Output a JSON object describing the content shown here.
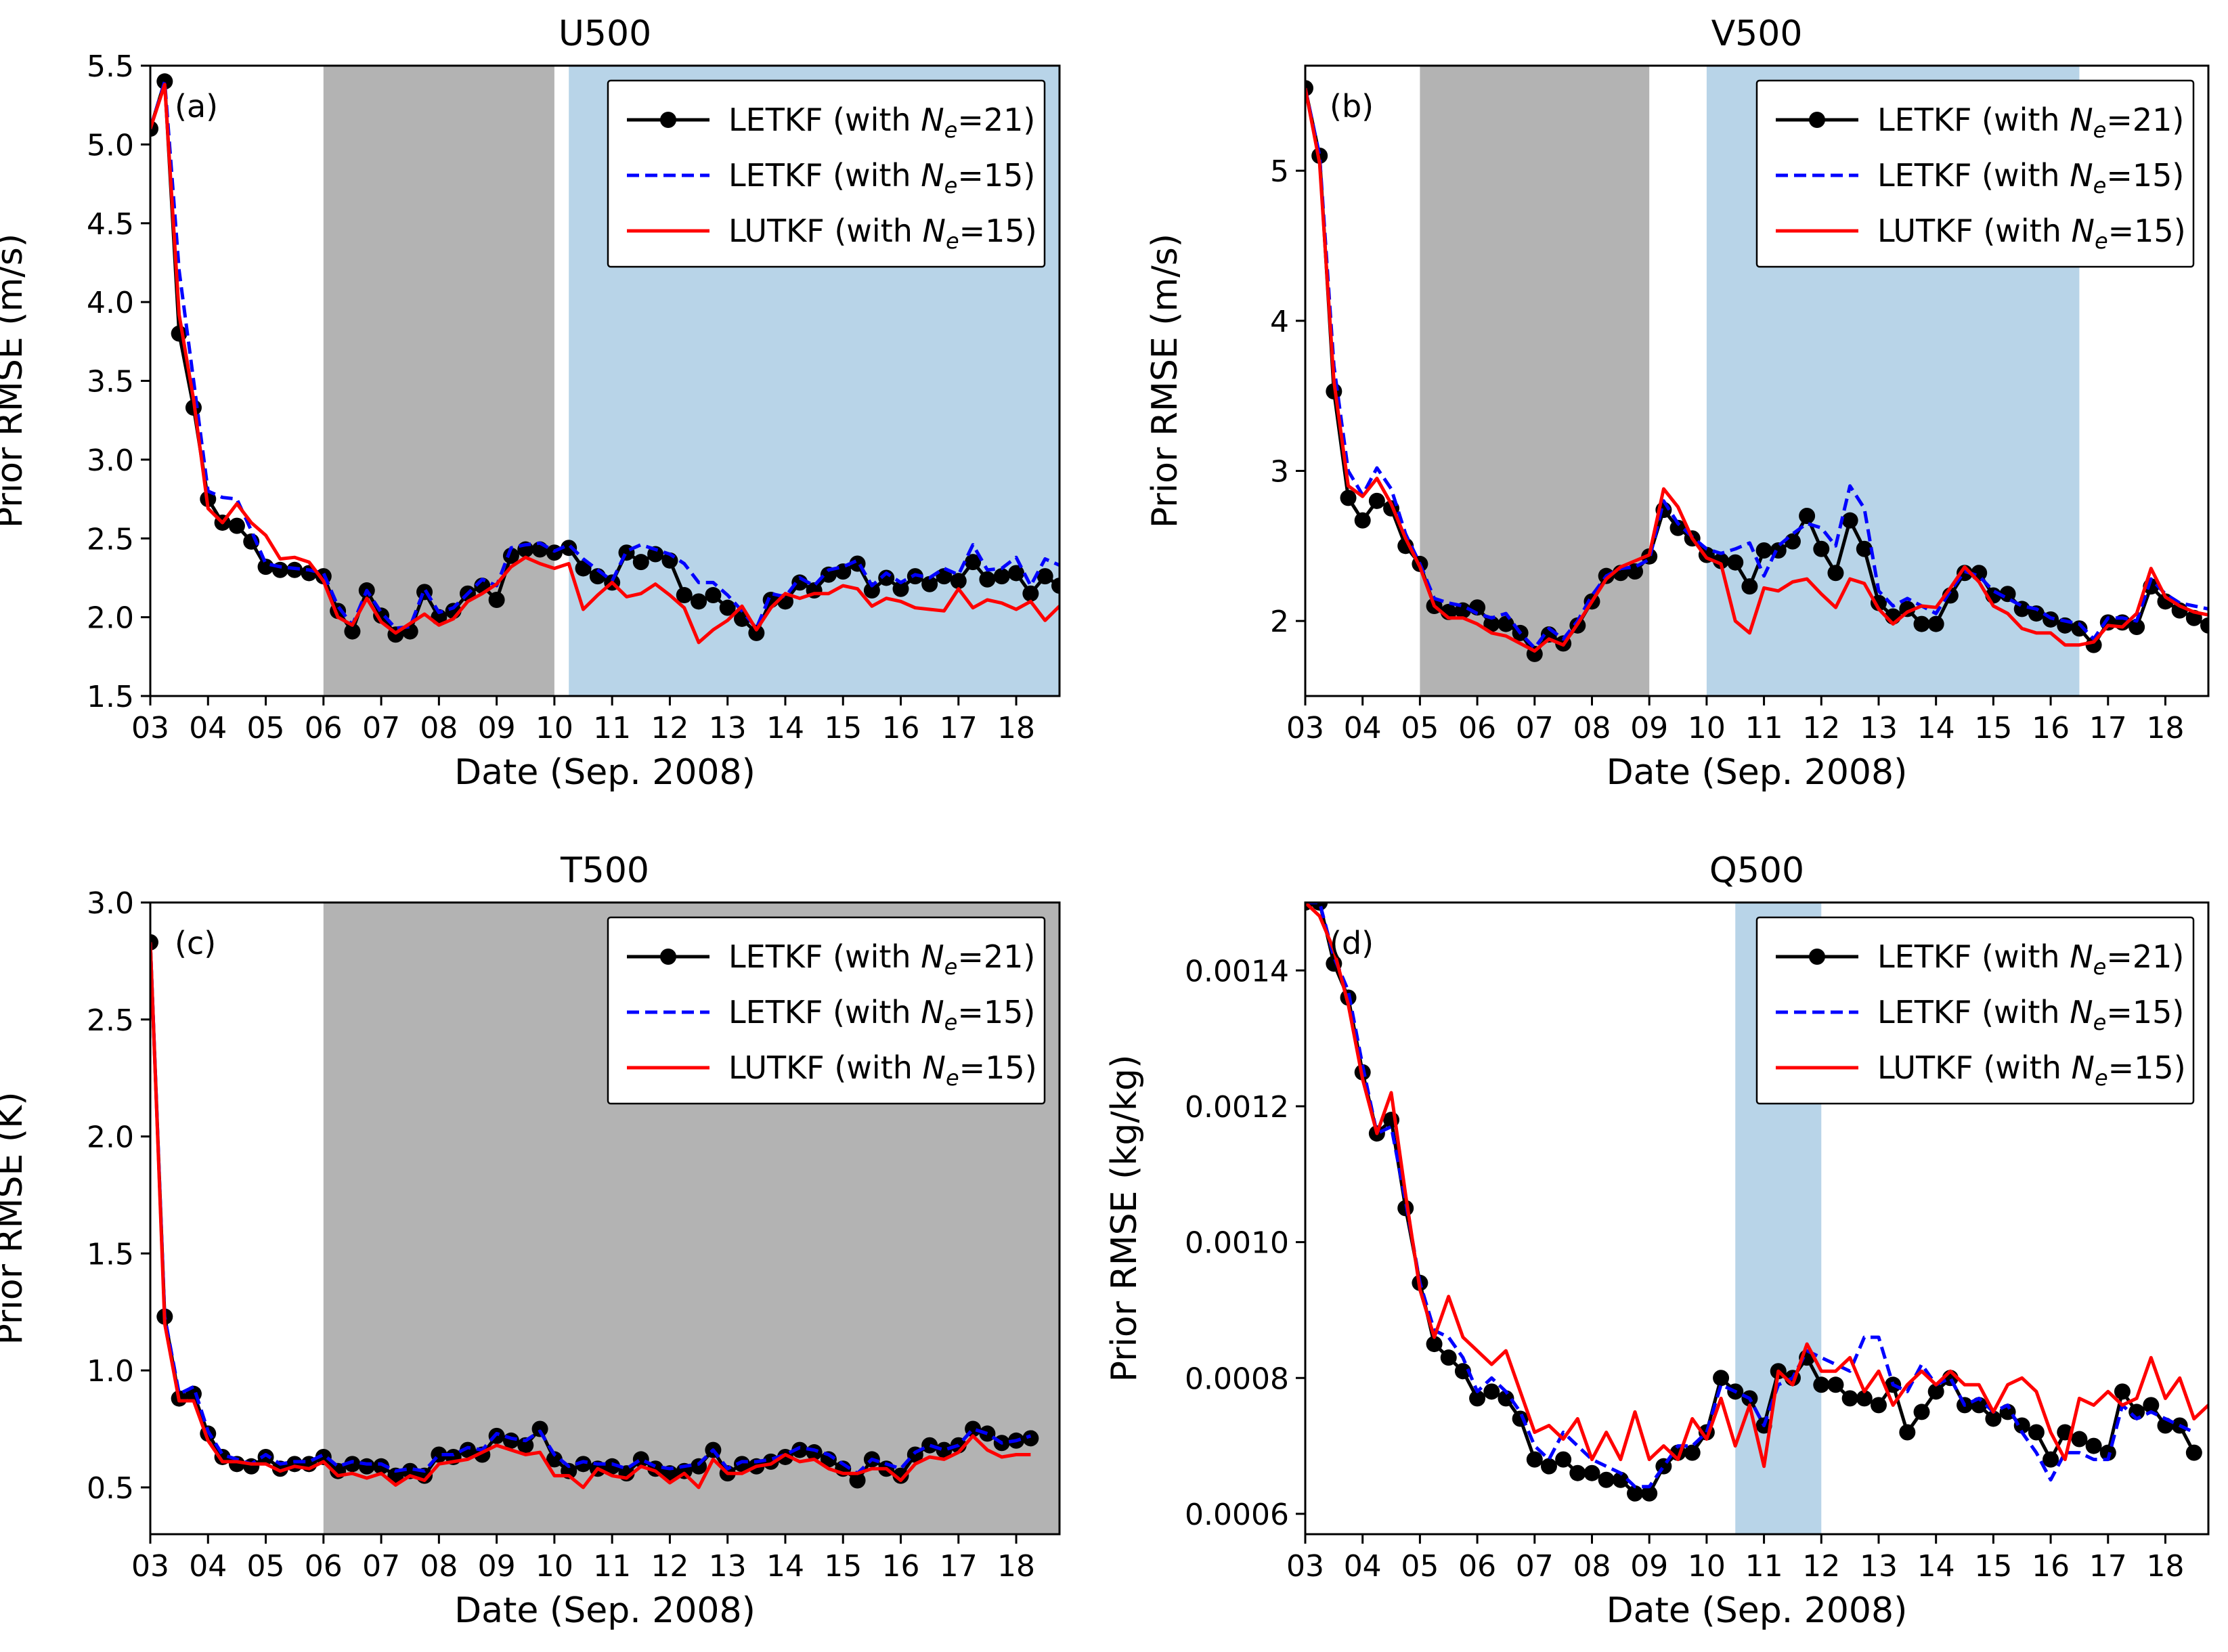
{
  "figure": {
    "background": "#ffffff",
    "colors": {
      "letkf21": "#000000",
      "letkf15": "#0000ff",
      "lutkf15": "#ff0000",
      "shade_gray": "#b3b3b3",
      "shade_blue": "#b8d4e8"
    }
  },
  "legend": {
    "placement": "top-right",
    "entries": [
      {
        "key": "letkf21",
        "prefix": "LETKF (with ",
        "suffix": "=21)",
        "style": "line-marker"
      },
      {
        "key": "letkf15",
        "prefix": "LETKF (with ",
        "suffix": "=15)",
        "style": "dashed"
      },
      {
        "key": "lutkf15",
        "prefix": "LUTKF (with ",
        "suffix": "=15)",
        "style": "solid"
      }
    ],
    "symbol_main": "N",
    "symbol_sub": "e"
  },
  "chart_data": [
    {
      "type": "line",
      "panel": "(a)",
      "title": "U500",
      "xlabel": "Date (Sep. 2008)",
      "ylabel": "Prior RMSE (m/s)",
      "xlim": [
        3,
        18.75
      ],
      "ylim": [
        1.5,
        5.5
      ],
      "xticks": [
        "03",
        "04",
        "05",
        "06",
        "07",
        "08",
        "09",
        "10",
        "11",
        "12",
        "13",
        "14",
        "15",
        "16",
        "17",
        "18"
      ],
      "yticks": [
        "1.5",
        "2.0",
        "2.5",
        "3.0",
        "3.5",
        "4.0",
        "4.5",
        "5.0",
        "5.5"
      ],
      "shaded": [
        {
          "from": 6.0,
          "to": 10.0,
          "color": "gray"
        },
        {
          "from": 10.25,
          "to": 18.75,
          "color": "blue"
        }
      ],
      "series": [
        {
          "key": "letkf21",
          "values": [
            5.1,
            5.4,
            3.8,
            3.33,
            2.75,
            2.6,
            2.58,
            2.48,
            2.32,
            2.3,
            2.3,
            2.28,
            2.26,
            2.04,
            1.91,
            2.17,
            2.01,
            1.89,
            1.91,
            2.16,
            2.0,
            2.04,
            2.15,
            2.2,
            2.11,
            2.39,
            2.43,
            2.43,
            2.41,
            2.44,
            2.31,
            2.26,
            2.22,
            2.41,
            2.35,
            2.4,
            2.36,
            2.14,
            2.1,
            2.14,
            2.06,
            1.99,
            1.9,
            2.11,
            2.1,
            2.22,
            2.17,
            2.27,
            2.29,
            2.34,
            2.17,
            2.25,
            2.18,
            2.26,
            2.21,
            2.26,
            2.23,
            2.35,
            2.24,
            2.26,
            2.28,
            2.15,
            2.26,
            2.2
          ]
        },
        {
          "key": "letkf15",
          "values": [
            5.1,
            5.4,
            4.2,
            3.5,
            2.8,
            2.76,
            2.75,
            2.55,
            2.34,
            2.32,
            2.31,
            2.3,
            2.28,
            2.07,
            1.95,
            2.17,
            2.03,
            1.93,
            1.94,
            2.18,
            2.03,
            2.06,
            2.15,
            2.24,
            2.2,
            2.44,
            2.46,
            2.47,
            2.42,
            2.46,
            2.37,
            2.3,
            2.23,
            2.42,
            2.46,
            2.43,
            2.4,
            2.34,
            2.22,
            2.22,
            2.14,
            2.04,
            1.93,
            2.15,
            2.13,
            2.25,
            2.2,
            2.3,
            2.32,
            2.36,
            2.2,
            2.28,
            2.22,
            2.27,
            2.25,
            2.31,
            2.27,
            2.46,
            2.3,
            2.31,
            2.38,
            2.2,
            2.37,
            2.33
          ]
        },
        {
          "key": "lutkf15",
          "values": [
            5.1,
            5.38,
            3.92,
            3.38,
            2.69,
            2.6,
            2.72,
            2.6,
            2.52,
            2.37,
            2.38,
            2.35,
            2.23,
            2.0,
            1.95,
            2.12,
            1.97,
            1.9,
            1.96,
            2.02,
            1.95,
            1.99,
            2.1,
            2.15,
            2.21,
            2.32,
            2.38,
            2.34,
            2.31,
            2.34,
            2.05,
            2.14,
            2.22,
            2.13,
            2.15,
            2.21,
            2.14,
            2.06,
            1.84,
            1.92,
            1.98,
            2.07,
            1.92,
            2.06,
            2.15,
            2.12,
            2.15,
            2.15,
            2.2,
            2.18,
            2.07,
            2.12,
            2.1,
            2.06,
            2.05,
            2.04,
            2.18,
            2.06,
            2.11,
            2.09,
            2.05,
            2.1,
            1.98,
            2.07,
            2.07
          ]
        }
      ]
    },
    {
      "type": "line",
      "panel": "(b)",
      "title": "V500",
      "xlabel": "Date (Sep. 2008)",
      "ylabel": "Prior RMSE (m/s)",
      "xlim": [
        3,
        18.75
      ],
      "ylim": [
        1.5,
        5.7
      ],
      "xticks": [
        "03",
        "04",
        "05",
        "06",
        "07",
        "08",
        "09",
        "10",
        "11",
        "12",
        "13",
        "14",
        "15",
        "16",
        "17",
        "18"
      ],
      "yticks": [
        "2",
        "3",
        "4",
        "5"
      ],
      "shaded": [
        {
          "from": 5.0,
          "to": 9.0,
          "color": "gray"
        },
        {
          "from": 10.0,
          "to": 16.5,
          "color": "blue"
        }
      ],
      "series": [
        {
          "key": "letkf21",
          "values": [
            5.55,
            5.1,
            3.53,
            2.82,
            2.67,
            2.8,
            2.75,
            2.5,
            2.38,
            2.1,
            2.06,
            2.07,
            2.09,
            1.98,
            1.98,
            1.92,
            1.78,
            1.91,
            1.85,
            1.97,
            2.13,
            2.3,
            2.32,
            2.33,
            2.43,
            2.74,
            2.62,
            2.55,
            2.44,
            2.4,
            2.39,
            2.23,
            2.47,
            2.47,
            2.53,
            2.7,
            2.48,
            2.32,
            2.67,
            2.48,
            2.12,
            2.03,
            2.08,
            1.98,
            1.98,
            2.17,
            2.32,
            2.32,
            2.17,
            2.18,
            2.08,
            2.05,
            2.01,
            1.97,
            1.95,
            1.84,
            1.99,
            1.99,
            1.96,
            2.23,
            2.13,
            2.07,
            2.02,
            1.97,
            1.96,
            1.77
          ]
        },
        {
          "key": "letkf15",
          "values": [
            5.55,
            5.1,
            3.7,
            3.0,
            2.84,
            3.02,
            2.88,
            2.58,
            2.38,
            2.15,
            2.12,
            2.1,
            2.05,
            2.02,
            2.05,
            1.92,
            1.82,
            1.95,
            1.88,
            2.0,
            2.17,
            2.3,
            2.35,
            2.36,
            2.41,
            2.8,
            2.65,
            2.56,
            2.48,
            2.45,
            2.48,
            2.52,
            2.3,
            2.5,
            2.58,
            2.65,
            2.62,
            2.5,
            2.9,
            2.75,
            2.2,
            2.1,
            2.15,
            2.1,
            2.05,
            2.2,
            2.33,
            2.3,
            2.2,
            2.15,
            2.1,
            2.08,
            2.02,
            2.0,
            1.98,
            1.88,
            2.02,
            2.02,
            2.0,
            2.28,
            2.18,
            2.12,
            2.1,
            2.08,
            2.05,
            1.85
          ]
        },
        {
          "key": "lutkf15",
          "values": [
            5.55,
            5.05,
            3.6,
            2.9,
            2.83,
            2.95,
            2.78,
            2.55,
            2.36,
            2.1,
            2.02,
            2.02,
            1.98,
            1.92,
            1.9,
            1.85,
            1.8,
            1.88,
            1.84,
            1.98,
            2.13,
            2.28,
            2.36,
            2.4,
            2.44,
            2.88,
            2.76,
            2.55,
            2.42,
            2.38,
            2.0,
            1.92,
            2.22,
            2.2,
            2.26,
            2.28,
            2.18,
            2.09,
            2.28,
            2.25,
            2.08,
            1.98,
            2.06,
            2.1,
            2.09,
            2.22,
            2.36,
            2.26,
            2.1,
            2.05,
            1.95,
            1.92,
            1.92,
            1.84,
            1.84,
            1.86,
            1.97,
            1.96,
            2.05,
            2.35,
            2.16,
            2.1,
            2.06,
            2.04,
            2.0,
            1.9
          ]
        }
      ]
    },
    {
      "type": "line",
      "panel": "(c)",
      "title": "T500",
      "xlabel": "Date (Sep. 2008)",
      "ylabel": "Prior RMSE (K)",
      "xlim": [
        3,
        18.75
      ],
      "ylim": [
        0.3,
        3.0
      ],
      "xticks": [
        "03",
        "04",
        "05",
        "06",
        "07",
        "08",
        "09",
        "10",
        "11",
        "12",
        "13",
        "14",
        "15",
        "16",
        "17",
        "18"
      ],
      "yticks": [
        "0.5",
        "1.0",
        "1.5",
        "2.0",
        "2.5",
        "3.0"
      ],
      "shaded": [
        {
          "from": 6.0,
          "to": 18.75,
          "color": "gray"
        }
      ],
      "series": [
        {
          "key": "letkf21",
          "values": [
            2.83,
            1.23,
            0.88,
            0.9,
            0.73,
            0.63,
            0.6,
            0.59,
            0.63,
            0.58,
            0.6,
            0.6,
            0.63,
            0.57,
            0.6,
            0.59,
            0.59,
            0.55,
            0.57,
            0.55,
            0.64,
            0.63,
            0.66,
            0.64,
            0.72,
            0.7,
            0.68,
            0.75,
            0.62,
            0.57,
            0.6,
            0.58,
            0.59,
            0.56,
            0.62,
            0.58,
            0.56,
            0.57,
            0.59,
            0.66,
            0.56,
            0.6,
            0.59,
            0.61,
            0.63,
            0.66,
            0.65,
            0.62,
            0.58,
            0.53,
            0.62,
            0.58,
            0.55,
            0.64,
            0.68,
            0.66,
            0.68,
            0.75,
            0.73,
            0.69,
            0.7,
            0.71
          ]
        },
        {
          "key": "letkf15",
          "values": [
            2.83,
            1.23,
            0.9,
            0.93,
            0.74,
            0.64,
            0.62,
            0.6,
            0.64,
            0.6,
            0.61,
            0.61,
            0.64,
            0.59,
            0.61,
            0.6,
            0.6,
            0.57,
            0.58,
            0.57,
            0.64,
            0.64,
            0.67,
            0.66,
            0.73,
            0.71,
            0.7,
            0.74,
            0.64,
            0.59,
            0.61,
            0.6,
            0.6,
            0.58,
            0.62,
            0.59,
            0.58,
            0.59,
            0.6,
            0.66,
            0.58,
            0.61,
            0.61,
            0.62,
            0.64,
            0.67,
            0.66,
            0.64,
            0.6,
            0.56,
            0.62,
            0.6,
            0.58,
            0.65,
            0.68,
            0.66,
            0.68,
            0.75,
            0.73,
            0.69,
            0.7,
            0.72
          ]
        },
        {
          "key": "lutkf15",
          "values": [
            2.83,
            1.2,
            0.87,
            0.87,
            0.7,
            0.61,
            0.61,
            0.6,
            0.6,
            0.57,
            0.59,
            0.58,
            0.61,
            0.55,
            0.56,
            0.54,
            0.56,
            0.51,
            0.55,
            0.53,
            0.6,
            0.61,
            0.62,
            0.65,
            0.68,
            0.66,
            0.64,
            0.65,
            0.55,
            0.55,
            0.5,
            0.58,
            0.55,
            0.54,
            0.59,
            0.57,
            0.52,
            0.56,
            0.5,
            0.62,
            0.56,
            0.56,
            0.59,
            0.6,
            0.64,
            0.61,
            0.62,
            0.58,
            0.56,
            0.56,
            0.58,
            0.58,
            0.53,
            0.6,
            0.63,
            0.62,
            0.65,
            0.72,
            0.66,
            0.63,
            0.64,
            0.64
          ]
        }
      ]
    },
    {
      "type": "line",
      "panel": "(d)",
      "title": "Q500",
      "xlabel": "Date (Sep. 2008)",
      "ylabel": "Prior RMSE (kg/kg)",
      "xlim": [
        3,
        18.75
      ],
      "ylim": [
        0.00057,
        0.0015
      ],
      "xticks": [
        "03",
        "04",
        "05",
        "06",
        "07",
        "08",
        "09",
        "10",
        "11",
        "12",
        "13",
        "14",
        "15",
        "16",
        "17",
        "18"
      ],
      "yticks": [
        "0.0006",
        "0.0008",
        "0.0010",
        "0.0012",
        "0.0014"
      ],
      "shaded": [
        {
          "from": 10.5,
          "to": 12.0,
          "color": "blue"
        }
      ],
      "series": [
        {
          "key": "letkf21",
          "values": [
            0.0015,
            0.0015,
            0.00141,
            0.00136,
            0.00125,
            0.00116,
            0.00118,
            0.00105,
            0.00094,
            0.00085,
            0.00083,
            0.00081,
            0.00077,
            0.00078,
            0.00077,
            0.00074,
            0.00068,
            0.00067,
            0.00068,
            0.00066,
            0.00066,
            0.00065,
            0.00065,
            0.00063,
            0.00063,
            0.00067,
            0.00069,
            0.00069,
            0.00072,
            0.0008,
            0.00078,
            0.00077,
            0.00073,
            0.00081,
            0.0008,
            0.00083,
            0.00079,
            0.00079,
            0.00077,
            0.00077,
            0.00076,
            0.00079,
            0.00072,
            0.00075,
            0.00078,
            0.0008,
            0.00076,
            0.00076,
            0.00074,
            0.00075,
            0.00073,
            0.00072,
            0.00068,
            0.00072,
            0.00071,
            0.0007,
            0.00069,
            0.00078,
            0.00075,
            0.00076,
            0.00073,
            0.00073,
            0.00069
          ]
        },
        {
          "key": "letkf15",
          "values": [
            0.0015,
            0.0015,
            0.00142,
            0.00137,
            0.00126,
            0.00116,
            0.00117,
            0.00106,
            0.00094,
            0.00087,
            0.00086,
            0.00083,
            0.00078,
            0.0008,
            0.00078,
            0.00075,
            0.0007,
            0.00068,
            0.00072,
            0.0007,
            0.00068,
            0.00067,
            0.00066,
            0.00064,
            0.00064,
            0.00067,
            0.0007,
            0.0007,
            0.00072,
            0.00079,
            0.00078,
            0.00077,
            0.00073,
            0.00079,
            0.0008,
            0.00084,
            0.00083,
            0.00082,
            0.00081,
            0.00086,
            0.00086,
            0.00079,
            0.00078,
            0.00082,
            0.00079,
            0.0008,
            0.00076,
            0.00077,
            0.00075,
            0.00076,
            0.00072,
            0.00069,
            0.00065,
            0.00069,
            0.00069,
            0.00068,
            0.00068,
            0.00076,
            0.00074,
            0.00075,
            0.00074,
            0.00073,
            0.00072
          ]
        },
        {
          "key": "lutkf15",
          "values": [
            0.0015,
            0.00148,
            0.00143,
            0.00135,
            0.00124,
            0.00116,
            0.00122,
            0.00107,
            0.00093,
            0.00086,
            0.00092,
            0.00086,
            0.00084,
            0.00082,
            0.00084,
            0.00078,
            0.00072,
            0.00073,
            0.00071,
            0.00074,
            0.00068,
            0.00072,
            0.00068,
            0.00075,
            0.00068,
            0.0007,
            0.00068,
            0.00074,
            0.00071,
            0.00077,
            0.0007,
            0.00076,
            0.00067,
            0.00081,
            0.00079,
            0.00085,
            0.00081,
            0.00081,
            0.00083,
            0.00078,
            0.00081,
            0.00076,
            0.00079,
            0.00081,
            0.00079,
            0.00081,
            0.00079,
            0.00079,
            0.00075,
            0.00079,
            0.0008,
            0.00078,
            0.00072,
            0.00068,
            0.00077,
            0.00076,
            0.00078,
            0.00076,
            0.00077,
            0.00083,
            0.00077,
            0.0008,
            0.00074,
            0.00076,
            0.00074
          ]
        }
      ]
    }
  ]
}
